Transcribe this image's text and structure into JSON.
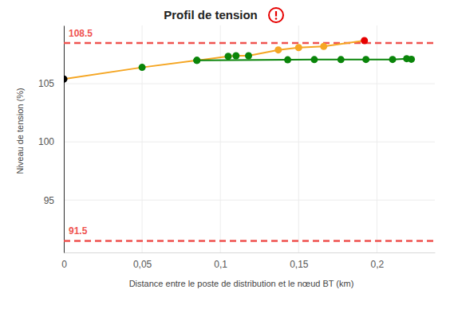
{
  "chart_data": {
    "type": "line",
    "title": "Profil de tension",
    "x_label": "Distance entre le poste de distribution et le nœud BT (km)",
    "y_label": "Niveau de tension (%)",
    "xlim": [
      0,
      0.237
    ],
    "ylim": [
      90.5,
      110
    ],
    "xticks": [
      0,
      {
        "value": 0.05,
        "label": "0,05"
      },
      {
        "value": 0.1,
        "label": "0,1"
      },
      {
        "value": 0.15,
        "label": "0,15"
      },
      {
        "value": 0.2,
        "label": "0,2"
      }
    ],
    "yticks": [
      95,
      100,
      105
    ],
    "grid": true,
    "marker": "circle",
    "reference_lines": [
      {
        "value": 108.5,
        "color": "#ef5350",
        "line_style": "dashed"
      },
      {
        "value": 91.5,
        "color": "#ef5350",
        "line_style": "dashed"
      }
    ],
    "series": [
      {
        "color": "#f5a623",
        "x": [
          0,
          0.05,
          0.085,
          0.105,
          0.11,
          0.118,
          0.137,
          0.15,
          0.166,
          0.192
        ],
        "values": [
          105.4,
          106.4,
          107.0,
          107.35,
          107.4,
          107.4,
          107.9,
          108.1,
          108.2,
          108.7
        ],
        "colors": [
          "#000000",
          "#0a850a",
          "#0a850a",
          "#0a850a",
          "#0a850a",
          "#0a850a",
          "#f5a623",
          "#f5a623",
          "#f5a623",
          "#e60000"
        ]
      },
      {
        "color": "#0a850a",
        "x": [
          0.085,
          0.143,
          0.16,
          0.177,
          0.193,
          0.21,
          0.219,
          0.222
        ],
        "values": [
          107.0,
          107.05,
          107.07,
          107.07,
          107.08,
          107.08,
          107.15,
          107.1
        ],
        "colors": [
          "#0a850a",
          "#0a850a",
          "#0a850a",
          "#0a850a",
          "#0a850a",
          "#0a850a",
          "#0a850a",
          "#0a850a"
        ]
      }
    ]
  }
}
